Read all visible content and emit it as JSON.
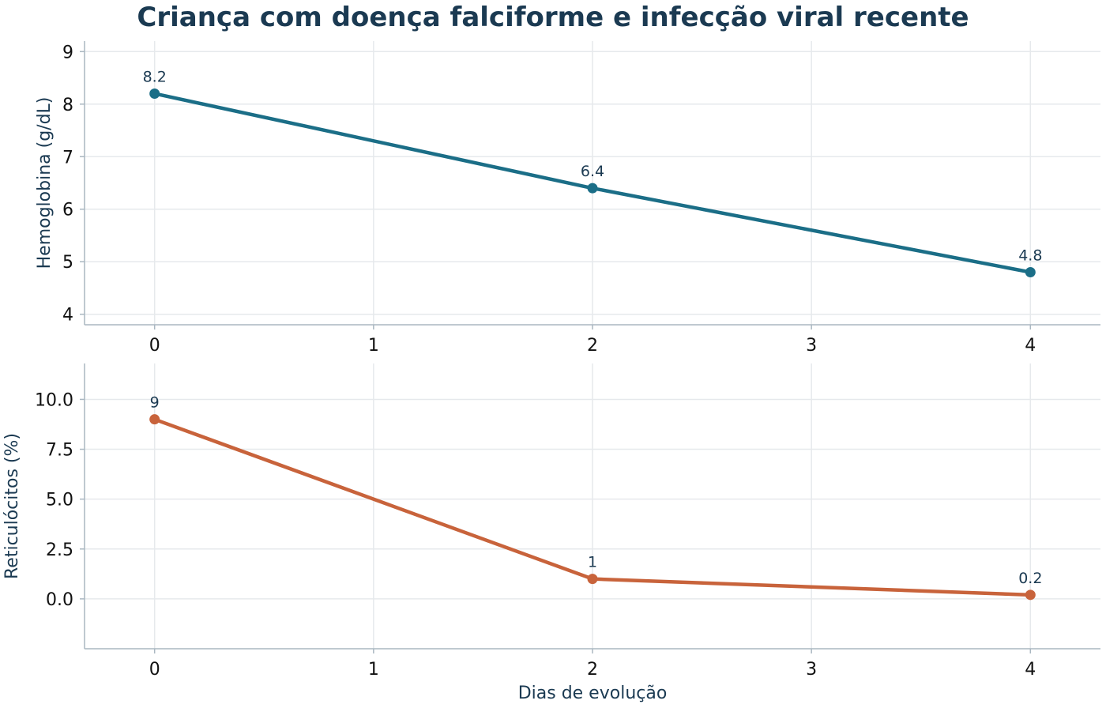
{
  "chart_data": {
    "type": "line",
    "title": "Criança com doença falciforme e infecção viral recente",
    "xlabel": "Dias de evolução",
    "x_ticks": [
      "0",
      "1",
      "2",
      "3",
      "4"
    ],
    "panels": [
      {
        "ylabel": "Hemoglobina (g/dL)",
        "color": "#1b6e87",
        "x": [
          0,
          2,
          4
        ],
        "y": [
          8.2,
          6.4,
          4.8
        ],
        "point_labels": [
          "8.2",
          "6.4",
          "4.8"
        ],
        "y_ticks": [
          {
            "value": 4,
            "label": "4"
          },
          {
            "value": 5,
            "label": "5"
          },
          {
            "value": 6,
            "label": "6"
          },
          {
            "value": 7,
            "label": "7"
          },
          {
            "value": 8,
            "label": "8"
          },
          {
            "value": 9,
            "label": "9"
          }
        ],
        "ylim": [
          3.8,
          9.2
        ],
        "xlim": [
          -0.32,
          4.32
        ]
      },
      {
        "ylabel": "Reticulócitos (%)",
        "color": "#c8633b",
        "x": [
          0,
          2,
          4
        ],
        "y": [
          9,
          1,
          0.2
        ],
        "point_labels": [
          "9",
          "1",
          "0.2"
        ],
        "y_ticks": [
          {
            "value": 0,
            "label": "0.0"
          },
          {
            "value": 2.5,
            "label": "2.5"
          },
          {
            "value": 5,
            "label": "5.0"
          },
          {
            "value": 7.5,
            "label": "7.5"
          },
          {
            "value": 10,
            "label": "10.0"
          }
        ],
        "ylim": [
          -2.5,
          11.8
        ],
        "xlim": [
          -0.32,
          4.32
        ]
      }
    ],
    "grid": true
  }
}
